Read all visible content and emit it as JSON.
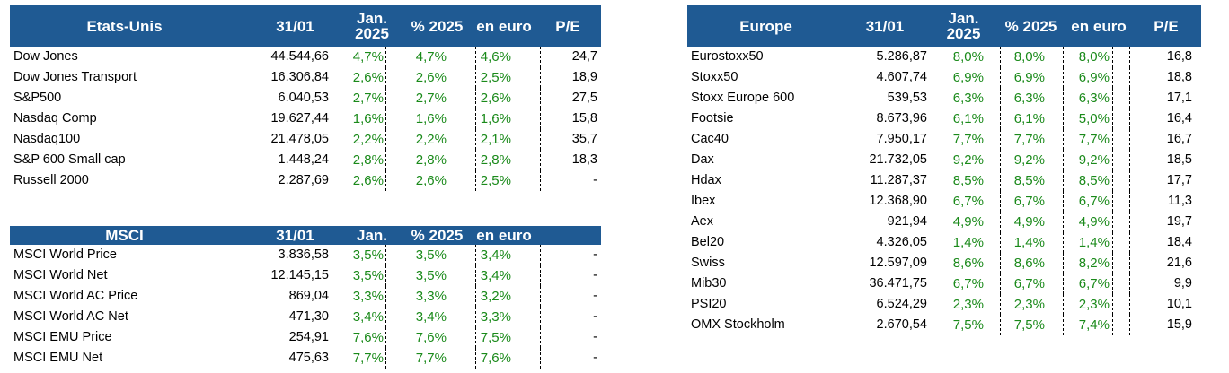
{
  "us": {
    "headers": [
      "Etats-Unis",
      "31/01",
      "Jan. 2025",
      "% 2025",
      "en euro",
      "P/E"
    ],
    "rows": [
      {
        "name": "Dow Jones",
        "value": "44.544,66",
        "jan": "4,7%",
        "ytd": "4,7%",
        "eur": "4,6%",
        "pe": "24,7"
      },
      {
        "name": "Dow Jones Transport",
        "value": "16.306,84",
        "jan": "2,6%",
        "ytd": "2,6%",
        "eur": "2,5%",
        "pe": "18,9"
      },
      {
        "name": "S&P500",
        "value": "6.040,53",
        "jan": "2,7%",
        "ytd": "2,7%",
        "eur": "2,6%",
        "pe": "27,5"
      },
      {
        "name": "Nasdaq Comp",
        "value": "19.627,44",
        "jan": "1,6%",
        "ytd": "1,6%",
        "eur": "1,6%",
        "pe": "15,8"
      },
      {
        "name": "Nasdaq100",
        "value": "21.478,05",
        "jan": "2,2%",
        "ytd": "2,2%",
        "eur": "2,1%",
        "pe": "35,7"
      },
      {
        "name": "S&P 600 Small cap",
        "value": "1.448,24",
        "jan": "2,8%",
        "ytd": "2,8%",
        "eur": "2,8%",
        "pe": "18,3"
      },
      {
        "name": "Russell 2000",
        "value": "2.287,69",
        "jan": "2,6%",
        "ytd": "2,6%",
        "eur": "2,5%",
        "pe": "-"
      }
    ]
  },
  "msci": {
    "headers": [
      "MSCI",
      "31/01",
      "Jan.",
      "% 2025",
      "en euro",
      ""
    ],
    "rows": [
      {
        "name": "MSCI World  Price",
        "value": "3.836,58",
        "jan": "3,5%",
        "ytd": "3,5%",
        "eur": "3,4%",
        "pe": "-"
      },
      {
        "name": "MSCI World Net",
        "value": "12.145,15",
        "jan": "3,5%",
        "ytd": "3,5%",
        "eur": "3,4%",
        "pe": "-"
      },
      {
        "name": "MSCI World AC Price",
        "value": "869,04",
        "jan": "3,3%",
        "ytd": "3,3%",
        "eur": "3,2%",
        "pe": "-"
      },
      {
        "name": "MSCI World AC Net",
        "value": "471,30",
        "jan": "3,4%",
        "ytd": "3,4%",
        "eur": "3,3%",
        "pe": "-"
      },
      {
        "name": "MSCI EMU Price",
        "value": "254,91",
        "jan": "7,6%",
        "ytd": "7,6%",
        "eur": "7,5%",
        "pe": "-"
      },
      {
        "name": "MSCI EMU Net",
        "value": "475,63",
        "jan": "7,7%",
        "ytd": "7,7%",
        "eur": "7,6%",
        "pe": "-"
      }
    ]
  },
  "europe": {
    "headers": [
      "Europe",
      "31/01",
      "Jan. 2025",
      "% 2025",
      "en euro",
      "P/E"
    ],
    "rows": [
      {
        "name": "Eurostoxx50",
        "value": "5.286,87",
        "jan": "8,0%",
        "ytd": "8,0%",
        "eur": "8,0%",
        "pe": "16,8"
      },
      {
        "name": "Stoxx50",
        "value": "4.607,74",
        "jan": "6,9%",
        "ytd": "6,9%",
        "eur": "6,9%",
        "pe": "18,8"
      },
      {
        "name": "Stoxx Europe 600",
        "value": "539,53",
        "jan": "6,3%",
        "ytd": "6,3%",
        "eur": "6,3%",
        "pe": "17,1"
      },
      {
        "name": "Footsie",
        "value": "8.673,96",
        "jan": "6,1%",
        "ytd": "6,1%",
        "eur": "5,0%",
        "pe": "16,4"
      },
      {
        "name": "Cac40",
        "value": "7.950,17",
        "jan": "7,7%",
        "ytd": "7,7%",
        "eur": "7,7%",
        "pe": "16,7"
      },
      {
        "name": "Dax",
        "value": "21.732,05",
        "jan": "9,2%",
        "ytd": "9,2%",
        "eur": "9,2%",
        "pe": "18,5"
      },
      {
        "name": "Hdax",
        "value": "11.287,37",
        "jan": "8,5%",
        "ytd": "8,5%",
        "eur": "8,5%",
        "pe": "17,7"
      },
      {
        "name": "Ibex",
        "value": "12.368,90",
        "jan": "6,7%",
        "ytd": "6,7%",
        "eur": "6,7%",
        "pe": "11,3"
      },
      {
        "name": "Aex",
        "value": "921,94",
        "jan": "4,9%",
        "ytd": "4,9%",
        "eur": "4,9%",
        "pe": "19,7"
      },
      {
        "name": "Bel20",
        "value": "4.326,05",
        "jan": "1,4%",
        "ytd": "1,4%",
        "eur": "1,4%",
        "pe": "18,4"
      },
      {
        "name": "Swiss",
        "value": "12.597,09",
        "jan": "8,6%",
        "ytd": "8,6%",
        "eur": "8,2%",
        "pe": "21,6"
      },
      {
        "name": "Mib30",
        "value": "36.471,75",
        "jan": "6,7%",
        "ytd": "6,7%",
        "eur": "6,7%",
        "pe": "9,9"
      },
      {
        "name": "PSI20",
        "value": "6.524,29",
        "jan": "2,3%",
        "ytd": "2,3%",
        "eur": "2,3%",
        "pe": "10,1"
      },
      {
        "name": "OMX Stockholm",
        "value": "2.670,54",
        "jan": "7,5%",
        "ytd": "7,5%",
        "eur": "7,4%",
        "pe": "15,9"
      }
    ]
  },
  "colors": {
    "header_bg": "#1f5a93",
    "header_text": "#ffffff",
    "positive": "#1a8a1a"
  }
}
